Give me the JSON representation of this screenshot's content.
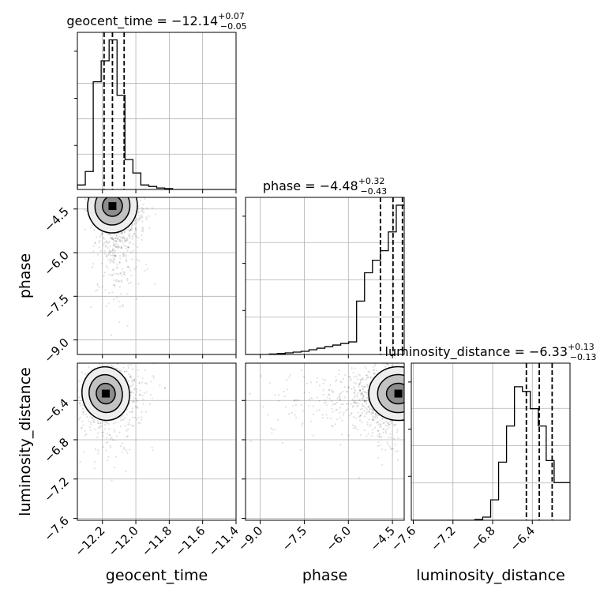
{
  "chart_data": {
    "type": "corner",
    "parameters": [
      "geocent_time",
      "phase",
      "luminosity_distance"
    ],
    "titles": [
      {
        "param": "geocent_time",
        "prefix": "geocent_time = ",
        "median": "−12.14",
        "plus": "+0.07",
        "minus": "−0.05"
      },
      {
        "param": "phase",
        "prefix": "phase = ",
        "median": "−4.48",
        "plus": "+0.32",
        "minus": "−0.43"
      },
      {
        "param": "luminosity_distance",
        "prefix": "luminosity_distance = ",
        "median": "−6.33",
        "plus": "+0.13",
        "minus": "−0.13"
      }
    ],
    "axes": {
      "geocent_time": {
        "range": [
          -12.35,
          -11.4
        ],
        "ticks": [
          -12.2,
          -12.0,
          -11.8,
          -11.6,
          -11.4
        ],
        "tick_labels": [
          "−12.2",
          "−12.0",
          "−11.8",
          "−11.6",
          "−11.4"
        ]
      },
      "phase": {
        "range": [
          -9.5,
          -4.1
        ],
        "ticks": [
          -9.0,
          -7.5,
          -6.0,
          -4.5
        ],
        "tick_labels": [
          "−9.0",
          "−7.5",
          "−6.0",
          "−4.5"
        ]
      },
      "luminosity_distance": {
        "range": [
          -7.62,
          -6.02
        ],
        "ticks": [
          -7.6,
          -7.2,
          -6.8,
          -6.4
        ],
        "tick_labels": [
          "−7.6",
          "−7.2",
          "−6.8",
          "−6.4"
        ]
      }
    },
    "histograms": {
      "geocent_time": {
        "bin_start": -12.35,
        "bin_width": 0.0475,
        "counts": [
          0.03,
          0.12,
          0.72,
          0.86,
          1.0,
          0.63,
          0.2,
          0.11,
          0.03,
          0.02,
          0.01,
          0.006,
          0,
          0,
          0,
          0,
          0,
          0,
          0,
          0
        ],
        "quantiles": [
          -12.19,
          -12.14,
          -12.07
        ],
        "ylim": [
          0,
          1.05
        ]
      },
      "phase": {
        "bin_start": -9.5,
        "bin_width": 0.27,
        "counts": [
          0,
          0,
          0,
          0.003,
          0.006,
          0.01,
          0.015,
          0.02,
          0.03,
          0.04,
          0.05,
          0.06,
          0.07,
          0.08,
          0.34,
          0.52,
          0.6,
          0.66,
          0.78,
          0.95
        ],
        "quantiles": [
          -4.91,
          -4.48,
          -4.16
        ],
        "ylim": [
          0,
          1.0
        ]
      },
      "luminosity_distance": {
        "bin_start": -7.62,
        "bin_width": 0.08,
        "counts": [
          0,
          0,
          0,
          0,
          0,
          0,
          0,
          0,
          0.005,
          0.02,
          0.13,
          0.37,
          0.6,
          0.85,
          0.82,
          0.71,
          0.6,
          0.38,
          0.24,
          0.24
        ],
        "quantiles": [
          -6.46,
          -6.33,
          -6.2
        ],
        "ylim": [
          0,
          1.0
        ]
      }
    },
    "pairs": [
      {
        "x": "geocent_time",
        "y": "phase",
        "mode_x": -12.14,
        "mode_y": -4.4
      },
      {
        "x": "geocent_time",
        "y": "luminosity_distance",
        "mode_x": -12.18,
        "mode_y": -6.33
      },
      {
        "x": "phase",
        "y": "luminosity_distance",
        "mode_x": -4.3,
        "mode_y": -6.33
      }
    ],
    "grid": true
  }
}
